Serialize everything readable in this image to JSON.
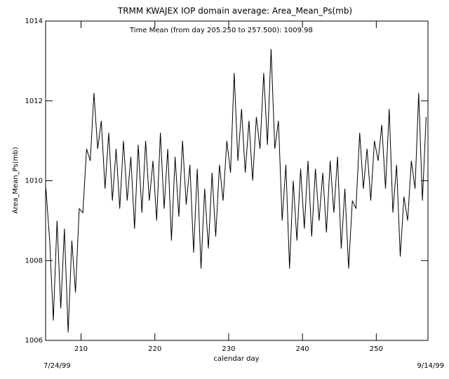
{
  "chart_data": {
    "type": "line",
    "title": "TRMM KWAJEX IOP domain average: Area_Mean_Ps(mb)",
    "subtitle": "Time Mean (from day 205.250 to 257.500): 1009.98",
    "x_label": "calendar day",
    "y_label": "Area_Mean_Ps(mb)",
    "start_date": "7/24/99",
    "end_date": "9/14/99",
    "color": "#000000",
    "annotation_color": "#800080",
    "xlim": [
      205.2,
      257.0
    ],
    "xticks": [
      210,
      220,
      230,
      240,
      250
    ],
    "ylim": [
      1006,
      1014
    ],
    "yticks": [
      1006,
      1008,
      1010,
      1012,
      1014
    ],
    "x": [
      205.25,
      205.75,
      206.25,
      206.75,
      207.25,
      207.75,
      208.25,
      208.75,
      209.25,
      209.75,
      210.25,
      210.75,
      211.25,
      211.75,
      212.25,
      212.75,
      213.25,
      213.75,
      214.25,
      214.75,
      215.25,
      215.75,
      216.25,
      216.75,
      217.25,
      217.75,
      218.25,
      218.75,
      219.25,
      219.75,
      220.25,
      220.75,
      221.25,
      221.75,
      222.25,
      222.75,
      223.25,
      223.75,
      224.25,
      224.75,
      225.25,
      225.75,
      226.25,
      226.75,
      227.25,
      227.75,
      228.25,
      228.75,
      229.25,
      229.75,
      230.25,
      230.75,
      231.25,
      231.75,
      232.25,
      232.75,
      233.25,
      233.75,
      234.25,
      234.75,
      235.25,
      235.75,
      236.25,
      236.75,
      237.25,
      237.75,
      238.25,
      238.75,
      239.25,
      239.75,
      240.25,
      240.75,
      241.25,
      241.75,
      242.25,
      242.75,
      243.25,
      243.75,
      244.25,
      244.75,
      245.25,
      245.75,
      246.25,
      246.75,
      247.25,
      247.75,
      248.25,
      248.75,
      249.25,
      249.75,
      250.25,
      250.75,
      251.25,
      251.75,
      252.25,
      252.75,
      253.25,
      253.75,
      254.25,
      254.75,
      255.25,
      255.75,
      256.25,
      256.75
    ],
    "values": [
      1009.8,
      1008.5,
      1006.5,
      1009,
      1006.8,
      1008.8,
      1006.2,
      1008.5,
      1007.2,
      1009.3,
      1009.2,
      1010.8,
      1010.5,
      1012.2,
      1010.8,
      1011.5,
      1009.8,
      1011.2,
      1009.5,
      1010.8,
      1009.3,
      1011,
      1009.5,
      1010.6,
      1008.8,
      1010.9,
      1009.2,
      1011,
      1009.5,
      1010.5,
      1009,
      1011.2,
      1009.3,
      1010.8,
      1008.5,
      1010.6,
      1009.1,
      1011,
      1009.4,
      1010.4,
      1008.2,
      1010.3,
      1007.8,
      1009.8,
      1008.3,
      1010.2,
      1008.6,
      1010.4,
      1009.5,
      1011,
      1010.2,
      1012.7,
      1010.5,
      1011.8,
      1010.2,
      1011.5,
      1010,
      1011.6,
      1010.8,
      1012.7,
      1010.9,
      1013.3,
      1010.8,
      1011.5,
      1009,
      1010.4,
      1007.8,
      1010,
      1008.5,
      1010.3,
      1008.8,
      1010.5,
      1008.6,
      1010.3,
      1009,
      1010.2,
      1008.7,
      1010.5,
      1009.2,
      1010.6,
      1008.3,
      1009.8,
      1007.8,
      1009.5,
      1009.3,
      1011.2,
      1009.8,
      1010.8,
      1009.5,
      1011,
      1010.5,
      1011.4,
      1009.8,
      1011.8,
      1009.2,
      1010.4,
      1008.1,
      1009.6,
      1009,
      1010.5,
      1009.8,
      1012.2,
      1009.5,
      1011.6
    ]
  }
}
